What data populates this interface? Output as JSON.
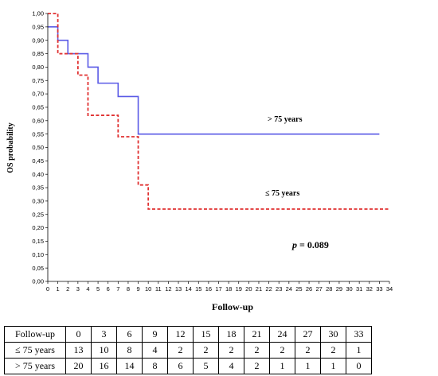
{
  "chart_data": {
    "type": "line",
    "step": true,
    "ylabel": "OS probability",
    "xlabel": "Follow-up",
    "xlim": [
      0,
      34
    ],
    "ylim": [
      0,
      1
    ],
    "x_ticks": [
      "0",
      "1",
      "2",
      "3",
      "4",
      "5",
      "6",
      "7",
      "8",
      "9",
      "10",
      "11",
      "12",
      "13",
      "14",
      "15",
      "16",
      "17",
      "18",
      "19",
      "20",
      "21",
      "22",
      "23",
      "24",
      "25",
      "26",
      "27",
      "28",
      "29",
      "30",
      "31",
      "32",
      "33",
      "34"
    ],
    "y_ticks": [
      "0,00",
      "0,05",
      "0,10",
      "0,15",
      "0,20",
      "0,25",
      "0,30",
      "0,35",
      "0,40",
      "0,45",
      "0,50",
      "0,55",
      "0,60",
      "0,65",
      "0,70",
      "0,75",
      "0,80",
      "0,85",
      "0,90",
      "0,95",
      "1,00"
    ],
    "grid": false,
    "series": [
      {
        "name": "> 75 years",
        "color": "#5a5ae6",
        "style": "solid",
        "points": [
          [
            0,
            0.95
          ],
          [
            1,
            0.9
          ],
          [
            2,
            0.85
          ],
          [
            4,
            0.8
          ],
          [
            5,
            0.74
          ],
          [
            7,
            0.69
          ],
          [
            9,
            0.55
          ],
          [
            33,
            0.55
          ]
        ]
      },
      {
        "name": "≤ 75 years",
        "color": "#e03030",
        "style": "dashed",
        "points": [
          [
            0,
            1.0
          ],
          [
            1,
            0.85
          ],
          [
            3,
            0.77
          ],
          [
            4,
            0.62
          ],
          [
            7,
            0.54
          ],
          [
            9,
            0.36
          ],
          [
            10,
            0.27
          ],
          [
            34,
            0.27
          ]
        ]
      }
    ],
    "annotations": {
      "p_value_label": "p",
      "p_value": " = 0.089"
    }
  },
  "risk_table": {
    "rows": [
      {
        "label": "Follow-up",
        "values": [
          "0",
          "3",
          "6",
          "9",
          "12",
          "15",
          "18",
          "21",
          "24",
          "27",
          "30",
          "33"
        ]
      },
      {
        "label": "≤ 75 years",
        "values": [
          "13",
          "10",
          "8",
          "4",
          "2",
          "2",
          "2",
          "2",
          "2",
          "2",
          "2",
          "1"
        ]
      },
      {
        "label": "> 75 years",
        "values": [
          "20",
          "16",
          "14",
          "8",
          "6",
          "5",
          "4",
          "2",
          "1",
          "1",
          "1",
          "0"
        ]
      }
    ]
  }
}
